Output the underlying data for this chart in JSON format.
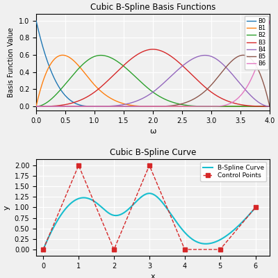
{
  "title_top": "Cubic B-Spline Basis Functions",
  "title_bottom": "Cubic B-Spline Curve",
  "xlabel_top": "ω",
  "xlabel_bottom": "x",
  "ylabel_top": "Basis Function Value",
  "ylabel_bottom": "y",
  "knot_vector": [
    0,
    0,
    0,
    0,
    1,
    2,
    3,
    4,
    4,
    4,
    4
  ],
  "degree": 3,
  "num_basis": 7,
  "omega_range": [
    0.0,
    4.0
  ],
  "basis_colors": [
    "#1f77b4",
    "#ff7f0e",
    "#2ca02c",
    "#d62728",
    "#9467bd",
    "#8c564b",
    "#e377c2"
  ],
  "basis_labels": [
    "B0",
    "B1",
    "B2",
    "B3",
    "B4",
    "B5",
    "B6"
  ],
  "control_points_x": [
    0,
    1,
    2,
    3,
    4,
    5,
    6
  ],
  "control_points_y": [
    0,
    2,
    0,
    2,
    0,
    0,
    1
  ],
  "curve_color": "#17becf",
  "control_color": "#d62728",
  "bg_color": "#f0f0f0",
  "grid_color": "white"
}
